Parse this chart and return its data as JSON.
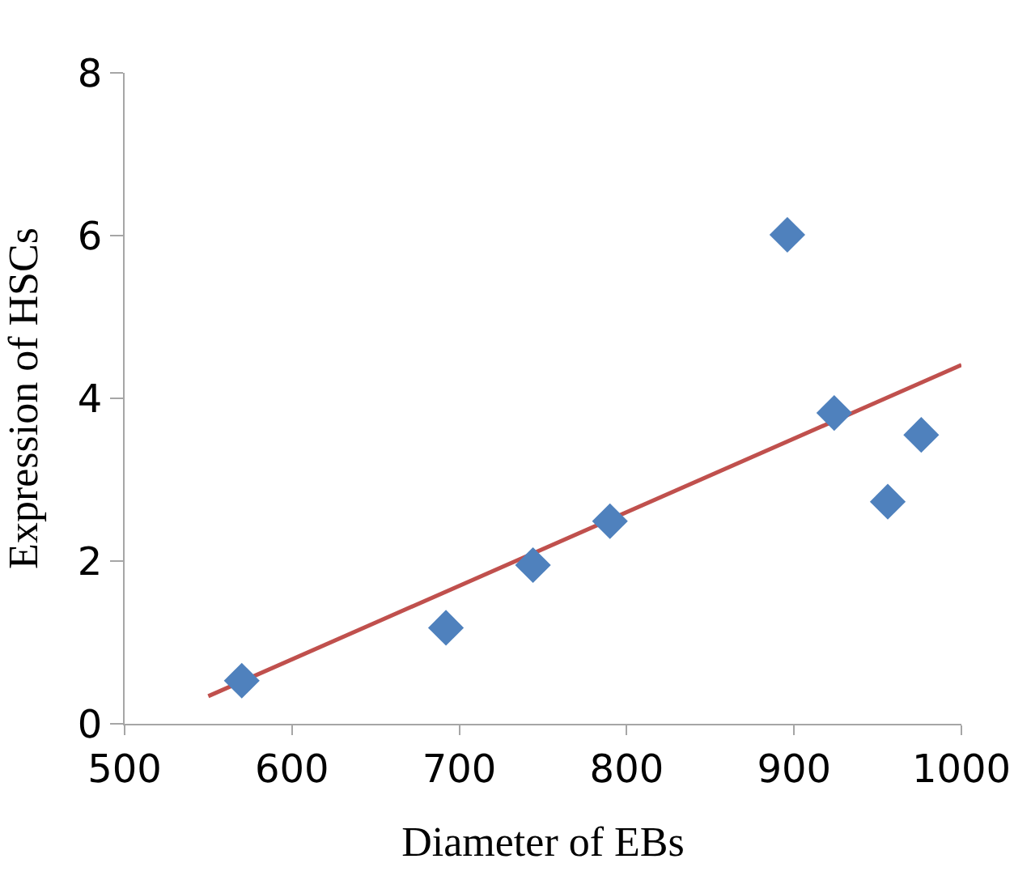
{
  "chart_data": {
    "type": "scatter",
    "xlabel": "Diameter of EBs",
    "ylabel": "Expression of HSCs",
    "xlim": [
      500,
      1000
    ],
    "xticks": [
      500,
      600,
      700,
      800,
      900,
      1000
    ],
    "ylim": [
      0,
      8
    ],
    "yticks": [
      0,
      2,
      4,
      6,
      8
    ],
    "series": [
      {
        "marker": "diamond",
        "color": "#4f81bd",
        "x": [
          570,
          692,
          744,
          790,
          896,
          924,
          956,
          976
        ],
        "values": [
          0.53,
          1.18,
          1.95,
          2.49,
          6.01,
          3.82,
          2.73,
          3.55
        ]
      },
      {
        "type": "line",
        "marker": "none",
        "line_style": "solid",
        "color": "#c0504d",
        "x": [
          550,
          1000
        ],
        "values": [
          0.34,
          4.41
        ]
      }
    ]
  }
}
